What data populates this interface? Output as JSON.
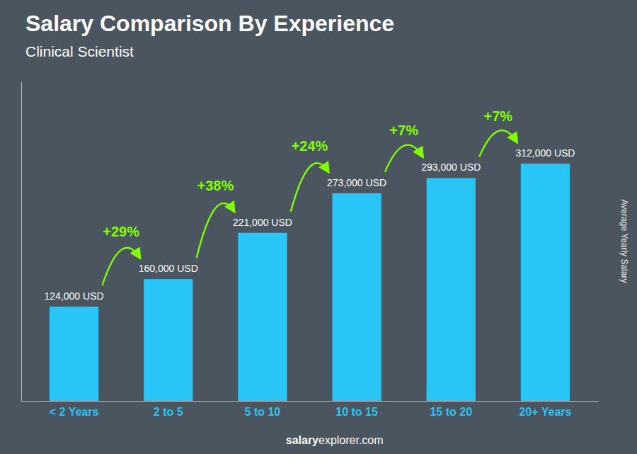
{
  "chart_data": {
    "type": "bar",
    "title": "Salary Comparison By Experience",
    "subtitle": "Clinical Scientist",
    "categories": [
      "< 2 Years",
      "2 to 5",
      "5 to 10",
      "10 to 15",
      "15 to 20",
      "20+ Years"
    ],
    "values": [
      124000,
      160000,
      221000,
      273000,
      293000,
      312000
    ],
    "value_labels": [
      "124,000 USD",
      "160,000 USD",
      "221,000 USD",
      "273,000 USD",
      "293,000 USD",
      "312,000 USD"
    ],
    "data_labels": true,
    "color": "#29c5f6",
    "ylabel": "Average Yearly Salary",
    "ylim": [
      0,
      420000
    ],
    "tick_labels": "x",
    "grid": false,
    "annotations": [
      "+29%",
      "+38%",
      "+24%",
      "+7%",
      "+7%"
    ],
    "footer": [
      "salary",
      "explorer.com"
    ]
  }
}
